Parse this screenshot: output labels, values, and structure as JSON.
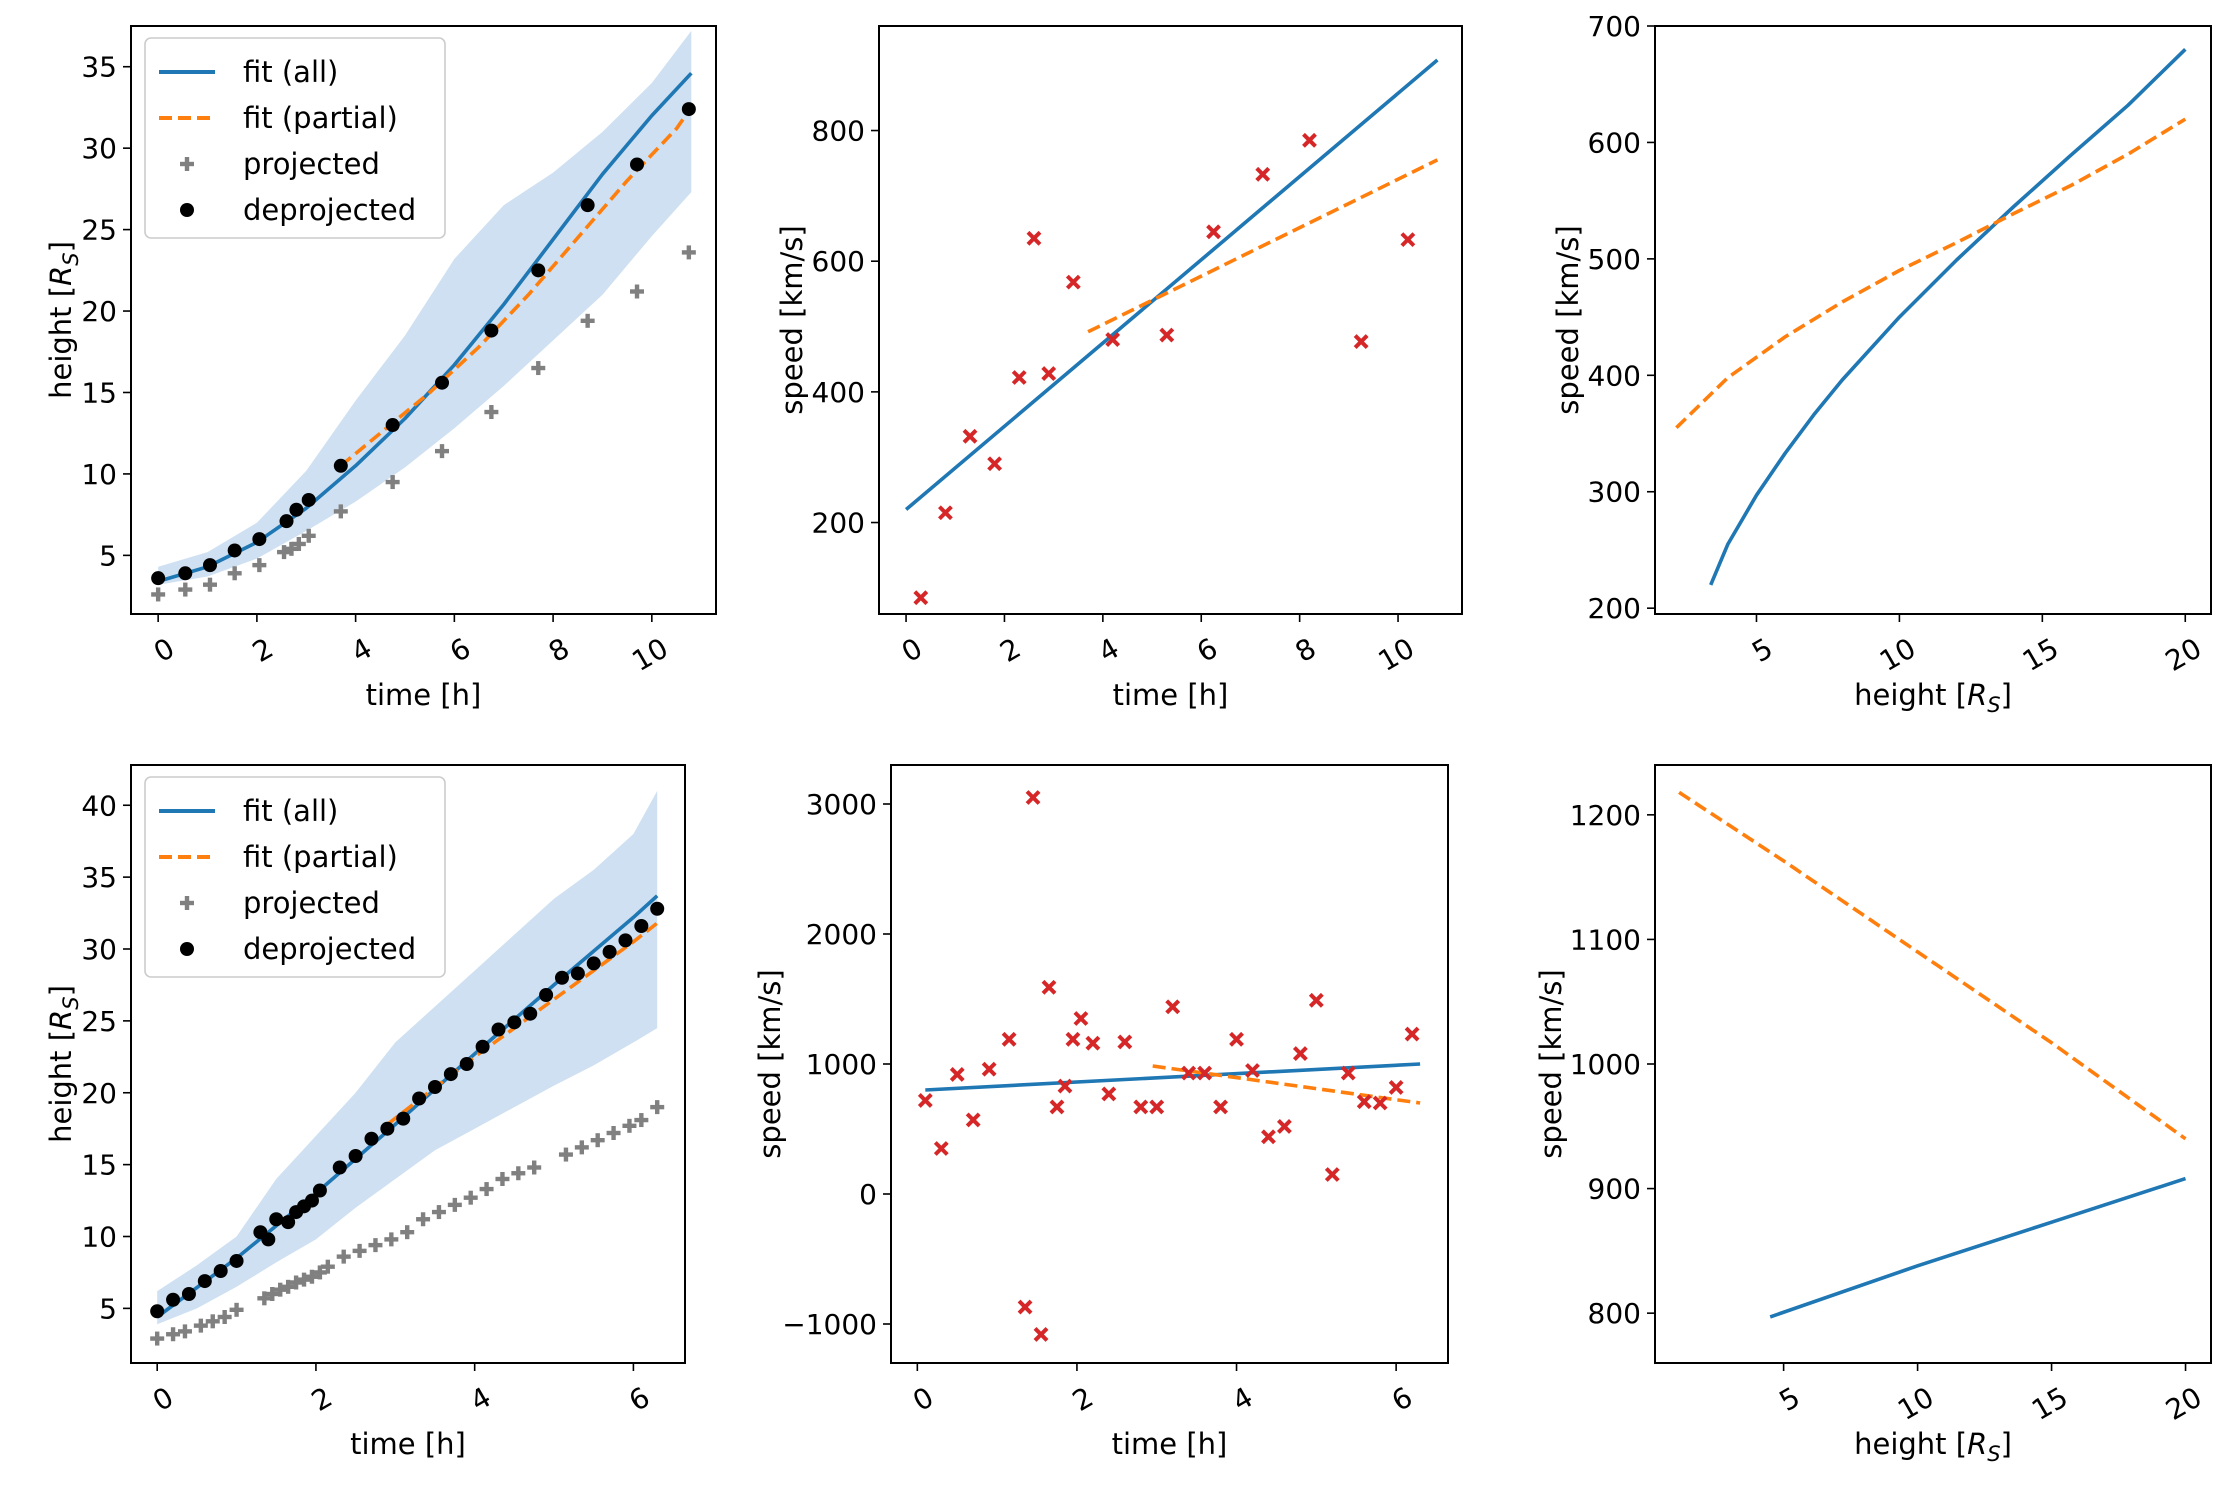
{
  "colors": {
    "fit_all": "#1f77b4",
    "fit_partial": "#ff7f0e",
    "projected": "#808080",
    "deprojected": "#000000",
    "speed_points": "#d62728",
    "band": "#c6dbef"
  },
  "legend": {
    "fit_all": "fit (all)",
    "fit_partial": "fit (partial)",
    "projected": "projected",
    "deprojected": "deprojected"
  },
  "chart_data": [
    {
      "id": "top-height-time",
      "type": "line",
      "xlabel": "time [h]",
      "ylabel": "height [R_S]",
      "xlim": [
        -0.55,
        11.3
      ],
      "ylim": [
        1.4,
        37.5
      ],
      "xticks": [
        0,
        2,
        4,
        6,
        8,
        10
      ],
      "xtick_labels": [
        "0",
        "2",
        "4",
        "6",
        "8",
        "10"
      ],
      "yticks": [
        5,
        10,
        15,
        20,
        25,
        30,
        35
      ],
      "ytick_labels": [
        "5",
        "10",
        "15",
        "20",
        "25",
        "30",
        "35"
      ],
      "legend_position": "upper-left",
      "band": {
        "x": [
          0,
          1,
          2,
          3,
          4,
          5,
          6,
          7,
          8,
          9,
          10,
          10.8
        ],
        "low": [
          3.2,
          3.7,
          4.8,
          6.5,
          8.3,
          10.4,
          12.8,
          15.4,
          18.2,
          21.0,
          24.6,
          27.3
        ],
        "high": [
          4.3,
          5.2,
          7.0,
          10.2,
          14.5,
          18.5,
          23.2,
          26.5,
          28.5,
          31.0,
          34.0,
          37.2
        ]
      },
      "series": [
        {
          "name": "fit (all)",
          "style": "line",
          "x": [
            0,
            1,
            2,
            3,
            4,
            5,
            6,
            7,
            8,
            9,
            10,
            10.8
          ],
          "y": [
            3.4,
            4.3,
            5.8,
            7.9,
            10.5,
            13.4,
            16.7,
            20.4,
            24.4,
            28.4,
            32.0,
            34.6
          ]
        },
        {
          "name": "fit (partial)",
          "style": "dashed",
          "x": [
            3.7,
            4.5,
            5.5,
            6.5,
            7.5,
            8.5,
            9.5,
            10.5,
            10.8
          ],
          "y": [
            10.5,
            12.5,
            15.0,
            17.8,
            21.0,
            24.5,
            28.0,
            31.2,
            32.5
          ]
        },
        {
          "name": "projected",
          "style": "plus",
          "x": [
            0,
            0.55,
            1.05,
            1.55,
            2.05,
            2.55,
            2.7,
            2.85,
            3.05,
            3.7,
            4.75,
            5.75,
            6.75,
            7.7,
            8.7,
            9.7,
            10.75
          ],
          "y": [
            2.6,
            2.9,
            3.2,
            3.9,
            4.4,
            5.2,
            5.4,
            5.7,
            6.2,
            7.7,
            9.5,
            11.4,
            13.8,
            16.5,
            19.4,
            21.2,
            23.6
          ]
        },
        {
          "name": "deprojected",
          "style": "dot",
          "x": [
            0,
            0.55,
            1.05,
            1.55,
            2.05,
            2.6,
            2.8,
            3.05,
            3.7,
            4.75,
            5.75,
            6.75,
            7.7,
            8.7,
            9.7,
            10.75
          ],
          "y": [
            3.6,
            3.9,
            4.4,
            5.3,
            6.0,
            7.1,
            7.8,
            8.4,
            10.5,
            13.0,
            15.6,
            18.8,
            22.5,
            26.5,
            29.0,
            32.4
          ]
        }
      ]
    },
    {
      "id": "top-speed-time",
      "type": "line",
      "xlabel": "time [h]",
      "ylabel": "speed [km/s]",
      "xlim": [
        -0.55,
        11.3
      ],
      "ylim": [
        60,
        960
      ],
      "xticks": [
        0,
        2,
        4,
        6,
        8,
        10
      ],
      "xtick_labels": [
        "0",
        "2",
        "4",
        "6",
        "8",
        "10"
      ],
      "yticks": [
        200,
        400,
        600,
        800
      ],
      "ytick_labels": [
        "200",
        "400",
        "600",
        "800"
      ],
      "series": [
        {
          "name": "fit (all)",
          "style": "line",
          "x": [
            0,
            10.8
          ],
          "y": [
            220,
            908
          ]
        },
        {
          "name": "fit (partial)",
          "style": "dashed",
          "x": [
            3.7,
            10.8
          ],
          "y": [
            492,
            755
          ]
        },
        {
          "name": "speed",
          "style": "cross",
          "x": [
            0.3,
            0.8,
            1.3,
            1.8,
            2.3,
            2.6,
            2.9,
            3.4,
            4.2,
            5.3,
            6.25,
            7.25,
            8.2,
            9.25,
            10.2
          ],
          "y": [
            85,
            215,
            332,
            290,
            422,
            635,
            428,
            568,
            480,
            487,
            645,
            733,
            785,
            477,
            633
          ]
        }
      ]
    },
    {
      "id": "top-speed-height",
      "type": "line",
      "xlabel": "height [R_S]",
      "ylabel": "speed [km/s]",
      "xlim": [
        1.45,
        20.9
      ],
      "ylim": [
        195,
        700
      ],
      "xticks": [
        5,
        10,
        15,
        20
      ],
      "xtick_labels": [
        "5",
        "10",
        "15",
        "20"
      ],
      "yticks": [
        200,
        300,
        400,
        500,
        600,
        700
      ],
      "ytick_labels": [
        "200",
        "300",
        "400",
        "500",
        "600",
        "700"
      ],
      "series": [
        {
          "name": "fit (all)",
          "style": "line",
          "x": [
            3.4,
            4,
            5,
            6,
            7,
            8,
            10,
            12,
            14,
            16,
            18,
            20
          ],
          "y": [
            220,
            255,
            297,
            333,
            366,
            396,
            450,
            499,
            545,
            589,
            632,
            680
          ]
        },
        {
          "name": "fit (partial)",
          "style": "dashed",
          "x": [
            2.2,
            4,
            6,
            8,
            10,
            12,
            14,
            16,
            18,
            20
          ],
          "y": [
            355,
            398,
            433,
            463,
            490,
            514,
            539,
            563,
            590,
            620
          ]
        }
      ]
    },
    {
      "id": "bottom-height-time",
      "type": "line",
      "xlabel": "time [h]",
      "ylabel": "height [R_S]",
      "xlim": [
        -0.33,
        6.65
      ],
      "ylim": [
        1.2,
        42.8
      ],
      "xticks": [
        0,
        2,
        4,
        6
      ],
      "xtick_labels": [
        "0",
        "2",
        "4",
        "6"
      ],
      "yticks": [
        5,
        10,
        15,
        20,
        25,
        30,
        35,
        40
      ],
      "ytick_labels": [
        "5",
        "10",
        "15",
        "20",
        "25",
        "30",
        "35",
        "40"
      ],
      "legend_position": "upper-left",
      "band": {
        "x": [
          0,
          0.5,
          1.0,
          1.5,
          2.0,
          2.5,
          3.0,
          3.5,
          4.0,
          4.5,
          5.0,
          5.5,
          6.0,
          6.3
        ],
        "low": [
          3.9,
          5.0,
          6.5,
          8.2,
          9.8,
          12.0,
          14.0,
          16.0,
          17.5,
          19.0,
          20.5,
          21.9,
          23.5,
          24.5
        ],
        "high": [
          6.2,
          8.0,
          10.0,
          14.0,
          17.0,
          20.0,
          23.5,
          26.0,
          28.5,
          31.0,
          33.5,
          35.5,
          38.0,
          41.0
        ]
      },
      "series": [
        {
          "name": "fit (all)",
          "style": "line",
          "x": [
            0,
            1,
            2,
            3,
            4,
            5,
            6,
            6.3
          ],
          "y": [
            4.4,
            8.5,
            13.0,
            17.8,
            22.7,
            27.5,
            32.2,
            33.7
          ]
        },
        {
          "name": "fit (partial)",
          "style": "dashed",
          "x": [
            2.9,
            4,
            5,
            6,
            6.3
          ],
          "y": [
            17.8,
            22.5,
            26.5,
            30.5,
            31.8
          ]
        },
        {
          "name": "projected",
          "style": "plus",
          "x": [
            0,
            0.2,
            0.35,
            0.55,
            0.7,
            0.85,
            1.0,
            1.35,
            1.45,
            1.55,
            1.65,
            1.75,
            1.85,
            1.95,
            2.05,
            2.15,
            2.35,
            2.55,
            2.75,
            2.95,
            3.15,
            3.35,
            3.55,
            3.75,
            3.95,
            4.15,
            4.35,
            4.55,
            4.75,
            5.15,
            5.35,
            5.55,
            5.75,
            5.95,
            6.1,
            6.3
          ],
          "y": [
            2.9,
            3.2,
            3.4,
            3.8,
            4.1,
            4.4,
            4.9,
            5.7,
            6.0,
            6.3,
            6.5,
            6.8,
            7.0,
            7.2,
            7.5,
            7.9,
            8.6,
            9.0,
            9.4,
            9.8,
            10.3,
            11.2,
            11.7,
            12.2,
            12.7,
            13.3,
            14.0,
            14.4,
            14.8,
            15.7,
            16.2,
            16.7,
            17.2,
            17.7,
            18.1,
            19.0
          ]
        },
        {
          "name": "deprojected",
          "style": "dot",
          "x": [
            0,
            0.2,
            0.4,
            0.6,
            0.8,
            1.0,
            1.3,
            1.4,
            1.5,
            1.65,
            1.75,
            1.85,
            1.95,
            2.05,
            2.3,
            2.5,
            2.7,
            2.9,
            3.1,
            3.3,
            3.5,
            3.7,
            3.9,
            4.1,
            4.3,
            4.5,
            4.7,
            4.9,
            5.1,
            5.3,
            5.5,
            5.7,
            5.9,
            6.1,
            6.3
          ],
          "y": [
            4.8,
            5.6,
            6.0,
            6.9,
            7.6,
            8.3,
            10.3,
            9.8,
            11.2,
            11.0,
            11.7,
            12.1,
            12.5,
            13.2,
            14.8,
            15.6,
            16.8,
            17.5,
            18.2,
            19.6,
            20.4,
            21.3,
            22.0,
            23.2,
            24.4,
            24.9,
            25.5,
            26.8,
            28.0,
            28.3,
            29.0,
            29.8,
            30.6,
            31.6,
            32.8
          ]
        }
      ]
    },
    {
      "id": "bottom-speed-time",
      "type": "line",
      "xlabel": "time [h]",
      "ylabel": "speed [km/s]",
      "xlim": [
        -0.33,
        6.65
      ],
      "ylim": [
        -1300,
        3300
      ],
      "xticks": [
        0,
        2,
        4,
        6
      ],
      "xtick_labels": [
        "0",
        "2",
        "4",
        "6"
      ],
      "yticks": [
        -1000,
        0,
        1000,
        2000,
        3000
      ],
      "ytick_labels": [
        "−1000",
        "0",
        "1000",
        "2000",
        "3000"
      ],
      "series": [
        {
          "name": "fit (all)",
          "style": "line",
          "x": [
            0.1,
            6.3
          ],
          "y": [
            800,
            1000
          ]
        },
        {
          "name": "fit (partial)",
          "style": "dashed",
          "x": [
            2.95,
            6.3
          ],
          "y": [
            985,
            700
          ]
        },
        {
          "name": "speed",
          "style": "cross",
          "x": [
            0.1,
            0.3,
            0.5,
            0.7,
            0.9,
            1.15,
            1.35,
            1.45,
            1.55,
            1.65,
            1.75,
            1.85,
            1.95,
            2.05,
            2.2,
            2.4,
            2.6,
            2.8,
            3.0,
            3.2,
            3.4,
            3.6,
            3.8,
            4.0,
            4.2,
            4.4,
            4.6,
            4.8,
            5.0,
            5.2,
            5.4,
            5.6,
            5.8,
            6.0,
            6.2
          ],
          "y": [
            720,
            350,
            920,
            570,
            960,
            1190,
            -870,
            3050,
            -1080,
            1590,
            670,
            830,
            1190,
            1350,
            1160,
            770,
            1170,
            670,
            670,
            1440,
            930,
            930,
            670,
            1190,
            950,
            440,
            520,
            1080,
            1490,
            150,
            930,
            710,
            700,
            820,
            1230
          ]
        }
      ]
    },
    {
      "id": "bottom-speed-height",
      "type": "line",
      "xlabel": "height [R_S]",
      "ylabel": "speed [km/s]",
      "xlim": [
        0.2,
        20.95
      ],
      "ylim": [
        760,
        1240
      ],
      "xticks": [
        5,
        10,
        15,
        20
      ],
      "xtick_labels": [
        "5",
        "10",
        "15",
        "20"
      ],
      "yticks": [
        800,
        900,
        1000,
        1100,
        1200
      ],
      "ytick_labels": [
        "800",
        "900",
        "1000",
        "1100",
        "1200"
      ],
      "series": [
        {
          "name": "fit (all)",
          "style": "line",
          "x": [
            4.5,
            10,
            15,
            20
          ],
          "y": [
            797,
            838,
            873,
            908
          ]
        },
        {
          "name": "fit (partial)",
          "style": "dashed",
          "x": [
            1.1,
            5,
            10,
            15,
            20
          ],
          "y": [
            1218,
            1163,
            1090,
            1017,
            940
          ]
        }
      ]
    }
  ]
}
